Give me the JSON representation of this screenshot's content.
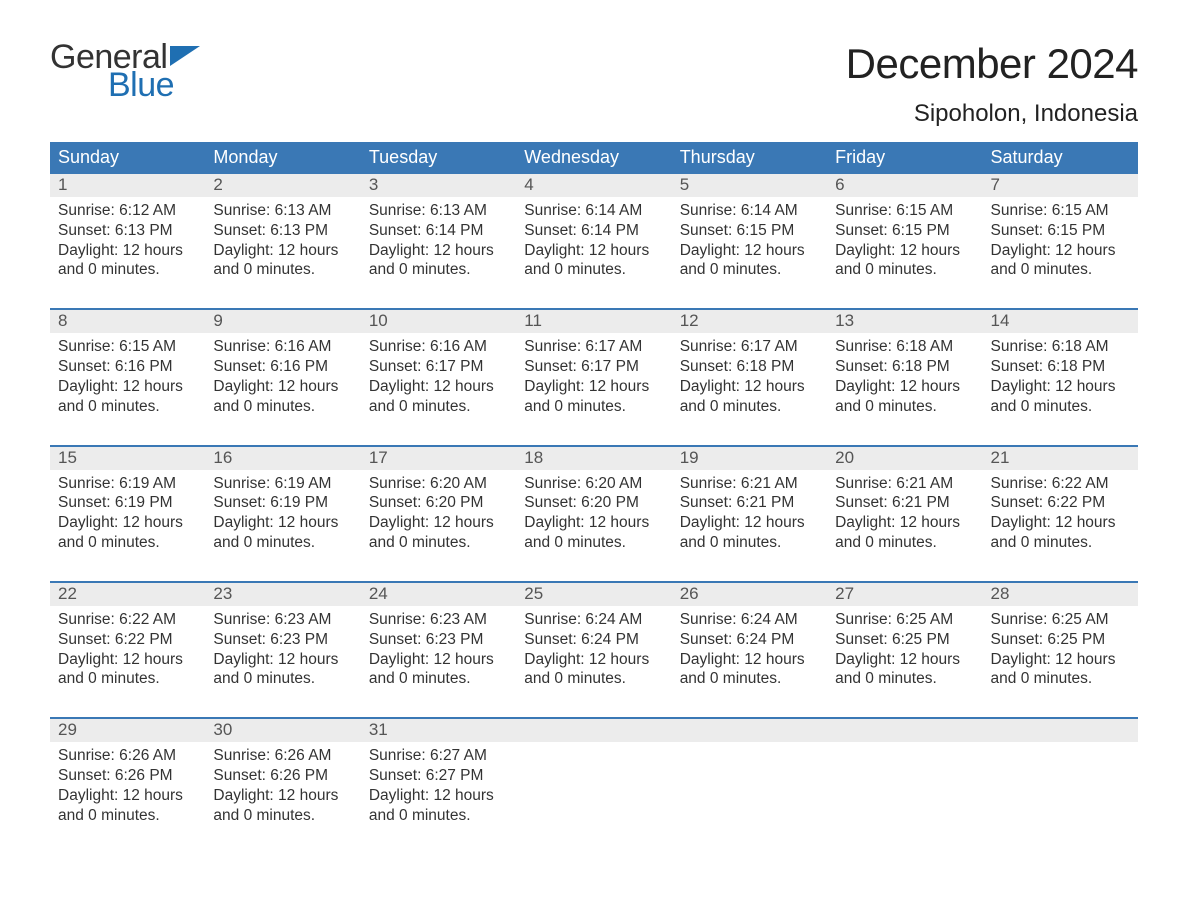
{
  "brand": {
    "general": "General",
    "blue": "Blue",
    "flag_color": "#1f6fb2"
  },
  "title": {
    "month": "December 2024",
    "location": "Sipoholon, Indonesia"
  },
  "colors": {
    "header_bg": "#3a78b5",
    "header_text": "#ffffff",
    "daynum_bg": "#ececec",
    "daynum_text": "#555555",
    "body_text": "#333333",
    "separator": "#3a78b5",
    "page_bg": "#ffffff"
  },
  "weekdays": [
    "Sunday",
    "Monday",
    "Tuesday",
    "Wednesday",
    "Thursday",
    "Friday",
    "Saturday"
  ],
  "weeks": [
    [
      {
        "n": "1",
        "sunrise": "Sunrise: 6:12 AM",
        "sunset": "Sunset: 6:13 PM",
        "day1": "Daylight: 12 hours",
        "day2": "and 0 minutes."
      },
      {
        "n": "2",
        "sunrise": "Sunrise: 6:13 AM",
        "sunset": "Sunset: 6:13 PM",
        "day1": "Daylight: 12 hours",
        "day2": "and 0 minutes."
      },
      {
        "n": "3",
        "sunrise": "Sunrise: 6:13 AM",
        "sunset": "Sunset: 6:14 PM",
        "day1": "Daylight: 12 hours",
        "day2": "and 0 minutes."
      },
      {
        "n": "4",
        "sunrise": "Sunrise: 6:14 AM",
        "sunset": "Sunset: 6:14 PM",
        "day1": "Daylight: 12 hours",
        "day2": "and 0 minutes."
      },
      {
        "n": "5",
        "sunrise": "Sunrise: 6:14 AM",
        "sunset": "Sunset: 6:15 PM",
        "day1": "Daylight: 12 hours",
        "day2": "and 0 minutes."
      },
      {
        "n": "6",
        "sunrise": "Sunrise: 6:15 AM",
        "sunset": "Sunset: 6:15 PM",
        "day1": "Daylight: 12 hours",
        "day2": "and 0 minutes."
      },
      {
        "n": "7",
        "sunrise": "Sunrise: 6:15 AM",
        "sunset": "Sunset: 6:15 PM",
        "day1": "Daylight: 12 hours",
        "day2": "and 0 minutes."
      }
    ],
    [
      {
        "n": "8",
        "sunrise": "Sunrise: 6:15 AM",
        "sunset": "Sunset: 6:16 PM",
        "day1": "Daylight: 12 hours",
        "day2": "and 0 minutes."
      },
      {
        "n": "9",
        "sunrise": "Sunrise: 6:16 AM",
        "sunset": "Sunset: 6:16 PM",
        "day1": "Daylight: 12 hours",
        "day2": "and 0 minutes."
      },
      {
        "n": "10",
        "sunrise": "Sunrise: 6:16 AM",
        "sunset": "Sunset: 6:17 PM",
        "day1": "Daylight: 12 hours",
        "day2": "and 0 minutes."
      },
      {
        "n": "11",
        "sunrise": "Sunrise: 6:17 AM",
        "sunset": "Sunset: 6:17 PM",
        "day1": "Daylight: 12 hours",
        "day2": "and 0 minutes."
      },
      {
        "n": "12",
        "sunrise": "Sunrise: 6:17 AM",
        "sunset": "Sunset: 6:18 PM",
        "day1": "Daylight: 12 hours",
        "day2": "and 0 minutes."
      },
      {
        "n": "13",
        "sunrise": "Sunrise: 6:18 AM",
        "sunset": "Sunset: 6:18 PM",
        "day1": "Daylight: 12 hours",
        "day2": "and 0 minutes."
      },
      {
        "n": "14",
        "sunrise": "Sunrise: 6:18 AM",
        "sunset": "Sunset: 6:18 PM",
        "day1": "Daylight: 12 hours",
        "day2": "and 0 minutes."
      }
    ],
    [
      {
        "n": "15",
        "sunrise": "Sunrise: 6:19 AM",
        "sunset": "Sunset: 6:19 PM",
        "day1": "Daylight: 12 hours",
        "day2": "and 0 minutes."
      },
      {
        "n": "16",
        "sunrise": "Sunrise: 6:19 AM",
        "sunset": "Sunset: 6:19 PM",
        "day1": "Daylight: 12 hours",
        "day2": "and 0 minutes."
      },
      {
        "n": "17",
        "sunrise": "Sunrise: 6:20 AM",
        "sunset": "Sunset: 6:20 PM",
        "day1": "Daylight: 12 hours",
        "day2": "and 0 minutes."
      },
      {
        "n": "18",
        "sunrise": "Sunrise: 6:20 AM",
        "sunset": "Sunset: 6:20 PM",
        "day1": "Daylight: 12 hours",
        "day2": "and 0 minutes."
      },
      {
        "n": "19",
        "sunrise": "Sunrise: 6:21 AM",
        "sunset": "Sunset: 6:21 PM",
        "day1": "Daylight: 12 hours",
        "day2": "and 0 minutes."
      },
      {
        "n": "20",
        "sunrise": "Sunrise: 6:21 AM",
        "sunset": "Sunset: 6:21 PM",
        "day1": "Daylight: 12 hours",
        "day2": "and 0 minutes."
      },
      {
        "n": "21",
        "sunrise": "Sunrise: 6:22 AM",
        "sunset": "Sunset: 6:22 PM",
        "day1": "Daylight: 12 hours",
        "day2": "and 0 minutes."
      }
    ],
    [
      {
        "n": "22",
        "sunrise": "Sunrise: 6:22 AM",
        "sunset": "Sunset: 6:22 PM",
        "day1": "Daylight: 12 hours",
        "day2": "and 0 minutes."
      },
      {
        "n": "23",
        "sunrise": "Sunrise: 6:23 AM",
        "sunset": "Sunset: 6:23 PM",
        "day1": "Daylight: 12 hours",
        "day2": "and 0 minutes."
      },
      {
        "n": "24",
        "sunrise": "Sunrise: 6:23 AM",
        "sunset": "Sunset: 6:23 PM",
        "day1": "Daylight: 12 hours",
        "day2": "and 0 minutes."
      },
      {
        "n": "25",
        "sunrise": "Sunrise: 6:24 AM",
        "sunset": "Sunset: 6:24 PM",
        "day1": "Daylight: 12 hours",
        "day2": "and 0 minutes."
      },
      {
        "n": "26",
        "sunrise": "Sunrise: 6:24 AM",
        "sunset": "Sunset: 6:24 PM",
        "day1": "Daylight: 12 hours",
        "day2": "and 0 minutes."
      },
      {
        "n": "27",
        "sunrise": "Sunrise: 6:25 AM",
        "sunset": "Sunset: 6:25 PM",
        "day1": "Daylight: 12 hours",
        "day2": "and 0 minutes."
      },
      {
        "n": "28",
        "sunrise": "Sunrise: 6:25 AM",
        "sunset": "Sunset: 6:25 PM",
        "day1": "Daylight: 12 hours",
        "day2": "and 0 minutes."
      }
    ],
    [
      {
        "n": "29",
        "sunrise": "Sunrise: 6:26 AM",
        "sunset": "Sunset: 6:26 PM",
        "day1": "Daylight: 12 hours",
        "day2": "and 0 minutes."
      },
      {
        "n": "30",
        "sunrise": "Sunrise: 6:26 AM",
        "sunset": "Sunset: 6:26 PM",
        "day1": "Daylight: 12 hours",
        "day2": "and 0 minutes."
      },
      {
        "n": "31",
        "sunrise": "Sunrise: 6:27 AM",
        "sunset": "Sunset: 6:27 PM",
        "day1": "Daylight: 12 hours",
        "day2": "and 0 minutes."
      },
      null,
      null,
      null,
      null
    ]
  ]
}
